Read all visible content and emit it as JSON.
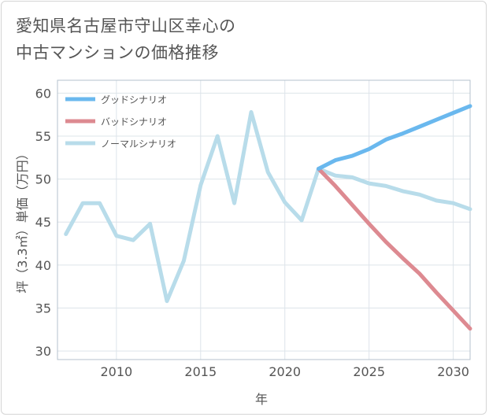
{
  "title_lines": [
    "愛知県名古屋市守山区幸心の",
    "中古マンションの価格推移"
  ],
  "chart_data": {
    "type": "line",
    "xlabel": "年",
    "ylabel": "坪（3.3㎡）単価（万円）",
    "xlim": [
      2006.5,
      2031
    ],
    "ylim": [
      29,
      61.5
    ],
    "xticks": [
      2010,
      2015,
      2020,
      2025,
      2030
    ],
    "yticks": [
      30,
      35,
      40,
      45,
      50,
      55,
      60
    ],
    "grid": true,
    "legend": "top-left",
    "series": [
      {
        "name": "グッドシナリオ",
        "color": "#6ab8ee",
        "x": [
          2022,
          2023,
          2024,
          2025,
          2026,
          2027,
          2028,
          2029,
          2030,
          2031
        ],
        "y": [
          51.2,
          52.2,
          52.7,
          53.5,
          54.6,
          55.3,
          56.1,
          56.9,
          57.7,
          58.5
        ]
      },
      {
        "name": "バッドシナリオ",
        "color": "#dd8a91",
        "x": [
          2022,
          2023,
          2024,
          2025,
          2026,
          2027,
          2028,
          2029,
          2030,
          2031
        ],
        "y": [
          51.2,
          49.2,
          47.0,
          44.8,
          42.7,
          40.8,
          39.0,
          36.8,
          34.7,
          32.6
        ]
      },
      {
        "name": "ノーマルシナリオ",
        "color": "#b8dcea",
        "x": [
          2007,
          2008,
          2009,
          2010,
          2011,
          2012,
          2013,
          2014,
          2015,
          2016,
          2017,
          2018,
          2019,
          2020,
          2021,
          2022,
          2023,
          2024,
          2025,
          2026,
          2027,
          2028,
          2029,
          2030,
          2031
        ],
        "y": [
          43.6,
          47.2,
          47.2,
          43.4,
          42.9,
          44.8,
          35.8,
          40.5,
          49.3,
          55.0,
          47.2,
          57.8,
          50.8,
          47.3,
          45.2,
          51.2,
          50.4,
          50.2,
          49.5,
          49.2,
          48.6,
          48.2,
          47.5,
          47.2,
          46.5
        ]
      }
    ]
  }
}
